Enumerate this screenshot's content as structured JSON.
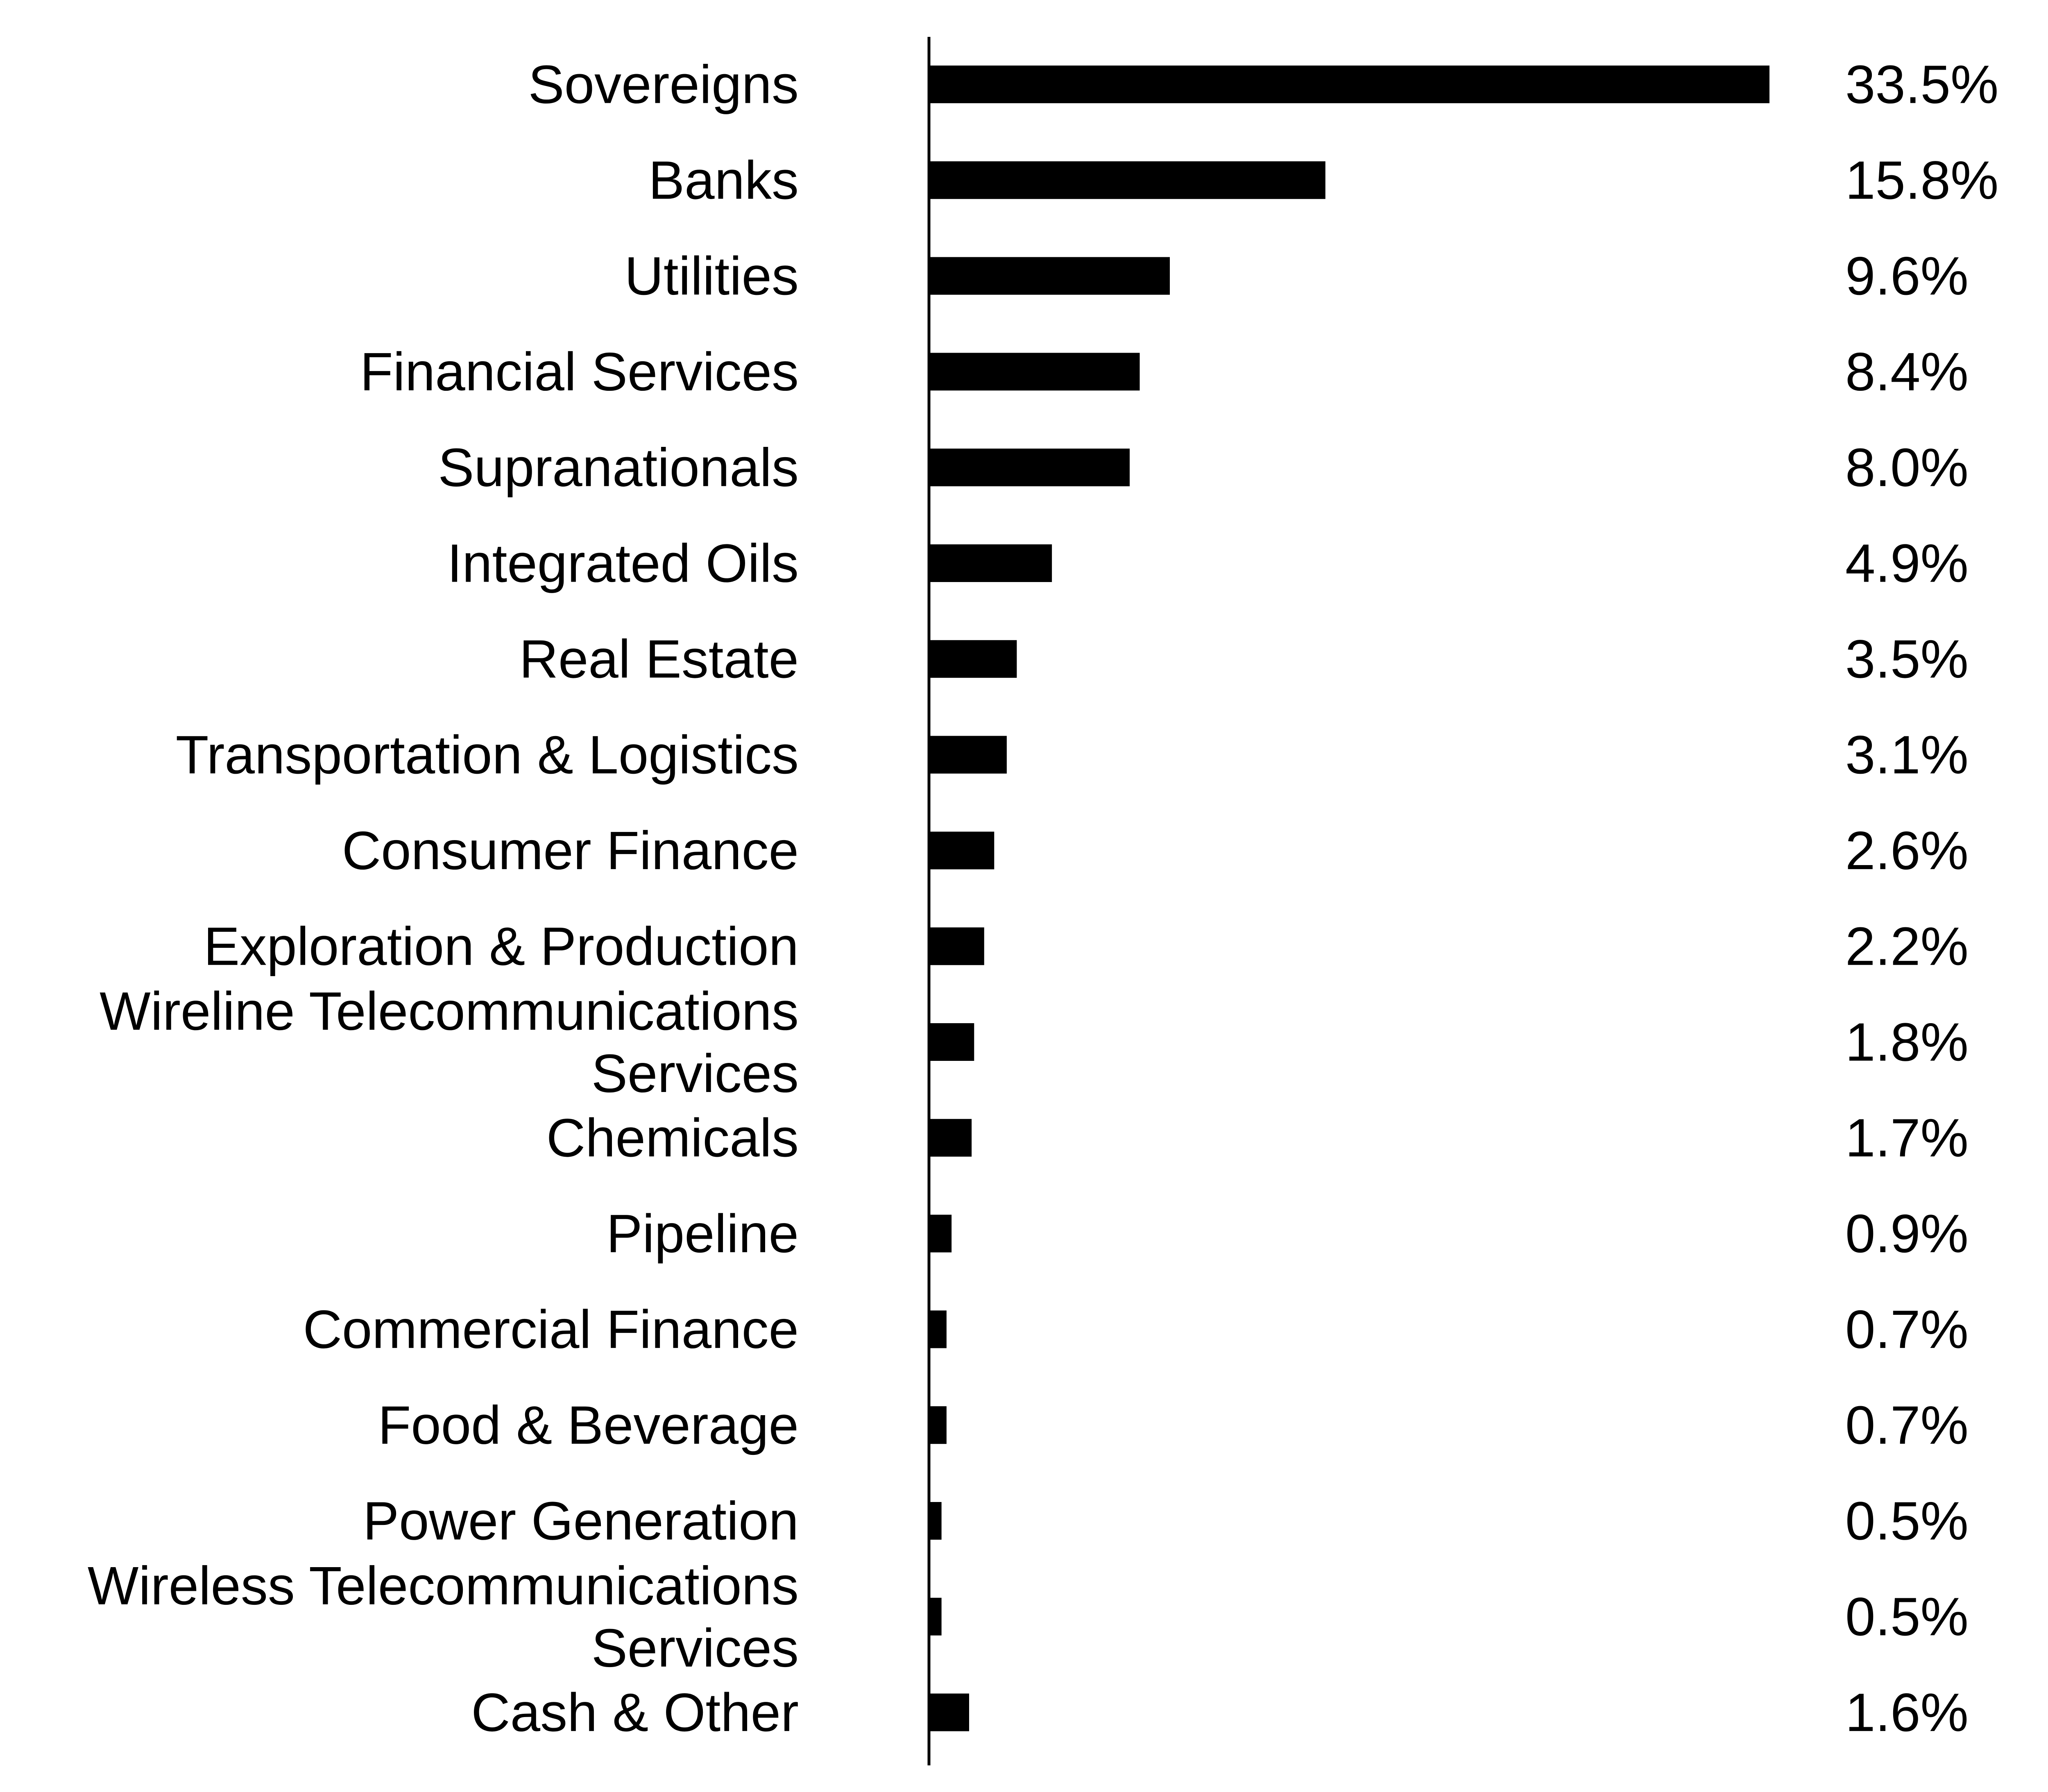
{
  "chart_data": {
    "type": "bar",
    "orientation": "horizontal",
    "title": "",
    "xlabel": "",
    "ylabel": "",
    "categories": [
      "Sovereigns",
      "Banks",
      "Utilities",
      "Financial Services",
      "Supranationals",
      "Integrated Oils",
      "Real Estate",
      "Transportation & Logistics",
      "Consumer Finance",
      "Exploration & Production",
      "Wireline Telecommunications Services",
      "Chemicals",
      "Pipeline",
      "Commercial Finance",
      "Food & Beverage",
      "Power Generation",
      "Wireless Telecommunications Services",
      "Cash & Other"
    ],
    "values": [
      33.5,
      15.8,
      9.6,
      8.4,
      8.0,
      4.9,
      3.5,
      3.1,
      2.6,
      2.2,
      1.8,
      1.7,
      0.9,
      0.7,
      0.7,
      0.5,
      0.5,
      1.6
    ],
    "value_labels": [
      "33.5%",
      "15.8%",
      "9.6%",
      "8.4%",
      "8.0%",
      "4.9%",
      "3.5%",
      "3.1%",
      "2.6%",
      "2.2%",
      "1.8%",
      "1.7%",
      "0.9%",
      "0.7%",
      "0.7%",
      "0.5%",
      "0.5%",
      "1.6%"
    ],
    "bar_color": "#000000",
    "grid": false,
    "legend": "none"
  }
}
